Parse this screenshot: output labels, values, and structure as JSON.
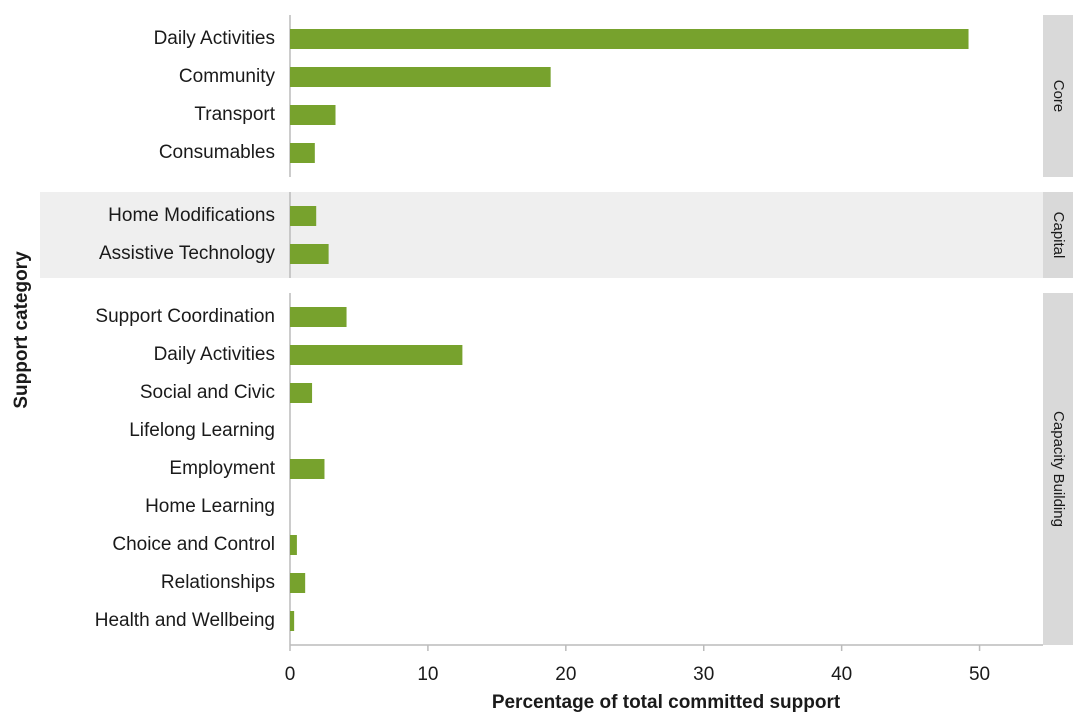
{
  "chart_data": {
    "type": "bar",
    "orientation": "horizontal",
    "color": "#77a22d",
    "xlabel": "Percentage of total committed support",
    "ylabel": "Support category",
    "xlim": [
      0,
      54.6
    ],
    "xticks": [
      0,
      10,
      20,
      30,
      40,
      50
    ],
    "facets": [
      {
        "name": "Core",
        "categories": [
          "Daily Activities",
          "Community",
          "Transport",
          "Consumables"
        ],
        "values": [
          49.2,
          18.9,
          3.3,
          1.8
        ]
      },
      {
        "name": "Capital",
        "categories": [
          "Home Modifications",
          "Assistive Technology"
        ],
        "values": [
          1.9,
          2.8
        ]
      },
      {
        "name": "Capacity Building",
        "categories": [
          "Support Coordination",
          "Daily Activities",
          "Social and Civic",
          "Lifelong Learning",
          "Employment",
          "Home Learning",
          "Choice and Control",
          "Relationships",
          "Health and Wellbeing"
        ],
        "values": [
          4.1,
          12.5,
          1.6,
          0,
          2.5,
          0,
          0.5,
          1.1,
          0.3
        ]
      }
    ]
  }
}
